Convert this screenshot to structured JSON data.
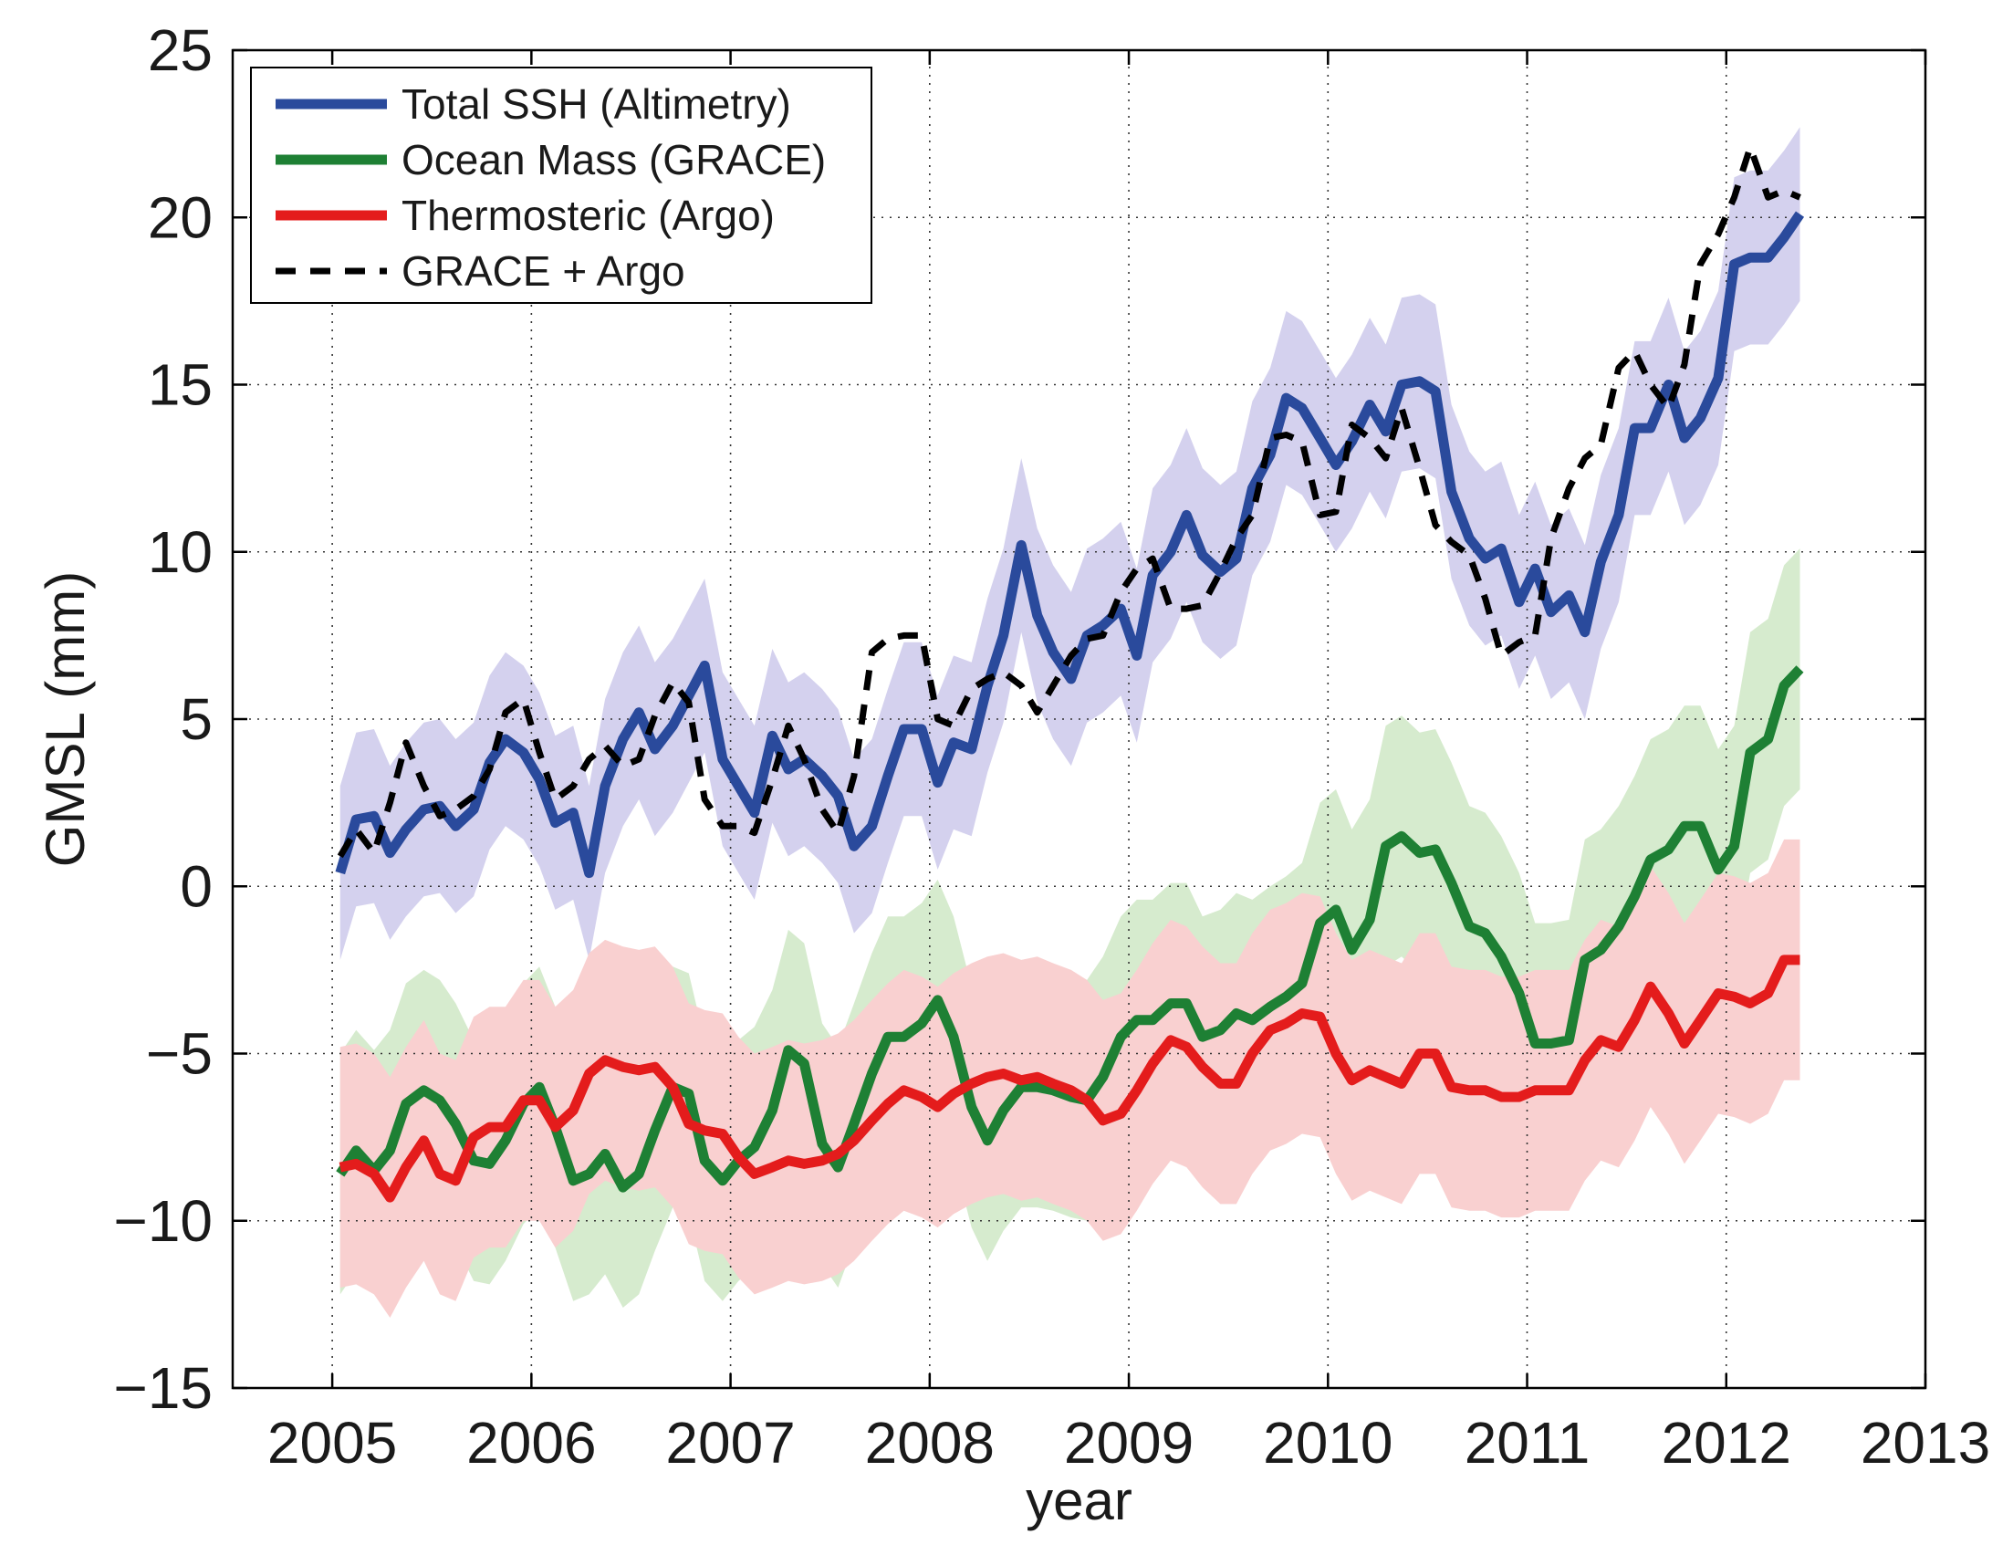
{
  "chart_data": {
    "type": "line",
    "title": "",
    "xlabel": "year",
    "ylabel": "GMSL (mm)",
    "xlim": [
      2004.5,
      2013
    ],
    "ylim": [
      -15,
      25
    ],
    "x_ticks": [
      2005,
      2006,
      2007,
      2008,
      2009,
      2010,
      2011,
      2012,
      2013
    ],
    "y_ticks": [
      -15,
      -10,
      -5,
      0,
      5,
      10,
      15,
      20,
      25
    ],
    "y_tick_labels": [
      "−15",
      "−10",
      "−5",
      "0",
      "5",
      "10",
      "15",
      "20",
      "25"
    ],
    "grid": true,
    "legend_position": "top-left",
    "series": [
      {
        "name": "Total SSH (Altimetry)",
        "color": "#2a4a9c",
        "band_color": "#d4d1ee",
        "band_width": 2.6,
        "style": "solid",
        "x": [
          2005.04,
          2005.12,
          2005.21,
          2005.29,
          2005.37,
          2005.46,
          2005.54,
          2005.62,
          2005.71,
          2005.79,
          2005.87,
          2005.96,
          2006.04,
          2006.12,
          2006.21,
          2006.29,
          2006.37,
          2006.46,
          2006.54,
          2006.62,
          2006.71,
          2006.79,
          2006.87,
          2006.96,
          2007.04,
          2007.12,
          2007.21,
          2007.29,
          2007.37,
          2007.46,
          2007.54,
          2007.62,
          2007.71,
          2007.79,
          2007.87,
          2007.96,
          2008.04,
          2008.12,
          2008.21,
          2008.29,
          2008.37,
          2008.46,
          2008.54,
          2008.62,
          2008.71,
          2008.79,
          2008.87,
          2008.96,
          2009.04,
          2009.12,
          2009.21,
          2009.29,
          2009.37,
          2009.46,
          2009.54,
          2009.62,
          2009.71,
          2009.79,
          2009.87,
          2009.96,
          2010.04,
          2010.12,
          2010.21,
          2010.29,
          2010.37,
          2010.46,
          2010.54,
          2010.62,
          2010.71,
          2010.79,
          2010.87,
          2010.96,
          2011.04,
          2011.12,
          2011.21,
          2011.29,
          2011.37,
          2011.46,
          2011.54,
          2011.62,
          2011.71,
          2011.79,
          2011.87,
          2011.96,
          2012.04,
          2012.12,
          2012.21,
          2012.29,
          2012.37
        ],
        "y": [
          0.4,
          2.0,
          2.1,
          1.0,
          1.7,
          2.3,
          2.4,
          1.8,
          2.3,
          3.7,
          4.4,
          4.0,
          3.2,
          1.9,
          2.2,
          0.4,
          3.0,
          4.4,
          5.2,
          4.1,
          4.8,
          5.7,
          6.6,
          3.8,
          3.0,
          2.2,
          4.5,
          3.5,
          3.8,
          3.3,
          2.7,
          1.2,
          1.8,
          3.3,
          4.7,
          4.7,
          3.1,
          4.3,
          4.1,
          6.0,
          7.5,
          10.2,
          8.1,
          7.0,
          6.2,
          7.5,
          7.8,
          8.3,
          6.9,
          9.3,
          10.0,
          11.1,
          9.9,
          9.4,
          9.8,
          11.9,
          12.9,
          14.6,
          14.3,
          13.4,
          12.6,
          13.3,
          14.4,
          13.6,
          15.0,
          15.1,
          14.8,
          11.8,
          10.4,
          9.8,
          10.1,
          8.5,
          9.5,
          8.2,
          8.7,
          7.6,
          9.7,
          11.1,
          13.7,
          13.7,
          15.0,
          13.4,
          14.0,
          15.2,
          18.6,
          18.8,
          18.8,
          19.4,
          20.1
        ]
      },
      {
        "name": "Ocean Mass (GRACE)",
        "color": "#1e8034",
        "band_color": "#d6ebce",
        "band_width": 3.6,
        "style": "solid",
        "x": [
          2005.04,
          2005.12,
          2005.21,
          2005.29,
          2005.37,
          2005.46,
          2005.54,
          2005.62,
          2005.71,
          2005.79,
          2005.87,
          2005.96,
          2006.04,
          2006.12,
          2006.21,
          2006.29,
          2006.37,
          2006.46,
          2006.54,
          2006.62,
          2006.71,
          2006.79,
          2006.87,
          2006.96,
          2007.04,
          2007.12,
          2007.21,
          2007.29,
          2007.37,
          2007.46,
          2007.54,
          2007.62,
          2007.71,
          2007.79,
          2007.87,
          2007.96,
          2008.04,
          2008.12,
          2008.21,
          2008.29,
          2008.37,
          2008.46,
          2008.54,
          2008.62,
          2008.71,
          2008.79,
          2008.87,
          2008.96,
          2009.04,
          2009.12,
          2009.21,
          2009.29,
          2009.37,
          2009.46,
          2009.54,
          2009.62,
          2009.71,
          2009.79,
          2009.87,
          2009.96,
          2010.04,
          2010.12,
          2010.21,
          2010.29,
          2010.37,
          2010.46,
          2010.54,
          2010.62,
          2010.71,
          2010.79,
          2010.87,
          2010.96,
          2011.04,
          2011.12,
          2011.21,
          2011.29,
          2011.37,
          2011.46,
          2011.54,
          2011.62,
          2011.71,
          2011.79,
          2011.87,
          2011.96,
          2012.04,
          2012.12,
          2012.21,
          2012.29,
          2012.37
        ],
        "y": [
          -8.6,
          -7.9,
          -8.5,
          -7.9,
          -6.5,
          -6.1,
          -6.4,
          -7.1,
          -8.2,
          -8.3,
          -7.6,
          -6.5,
          -6.0,
          -7.2,
          -8.8,
          -8.6,
          -8.0,
          -9.0,
          -8.6,
          -7.3,
          -6.0,
          -6.2,
          -8.2,
          -8.8,
          -8.2,
          -7.8,
          -6.7,
          -4.9,
          -5.3,
          -7.7,
          -8.4,
          -7.1,
          -5.6,
          -4.5,
          -4.5,
          -4.1,
          -3.4,
          -4.5,
          -6.6,
          -7.6,
          -6.7,
          -6.0,
          -6.0,
          -6.1,
          -6.3,
          -6.4,
          -5.7,
          -4.5,
          -4.0,
          -4.0,
          -3.5,
          -3.5,
          -4.5,
          -4.3,
          -3.8,
          -4.0,
          -3.6,
          -3.3,
          -2.9,
          -1.1,
          -0.7,
          -1.9,
          -1.0,
          1.2,
          1.5,
          1.0,
          1.1,
          0.1,
          -1.2,
          -1.4,
          -2.1,
          -3.2,
          -4.7,
          -4.7,
          -4.6,
          -2.2,
          -1.9,
          -1.2,
          -0.3,
          0.8,
          1.1,
          1.8,
          1.8,
          0.5,
          1.2,
          4.0,
          4.4,
          6.0,
          6.5
        ]
      },
      {
        "name": "Thermosteric (Argo)",
        "color": "#e41c1c",
        "band_color": "#f9d0d0",
        "band_width": 3.6,
        "style": "solid",
        "x": [
          2005.04,
          2005.12,
          2005.21,
          2005.29,
          2005.37,
          2005.46,
          2005.54,
          2005.62,
          2005.71,
          2005.79,
          2005.87,
          2005.96,
          2006.04,
          2006.12,
          2006.21,
          2006.29,
          2006.37,
          2006.46,
          2006.54,
          2006.62,
          2006.71,
          2006.79,
          2006.87,
          2006.96,
          2007.04,
          2007.12,
          2007.21,
          2007.29,
          2007.37,
          2007.46,
          2007.54,
          2007.62,
          2007.71,
          2007.79,
          2007.87,
          2007.96,
          2008.04,
          2008.12,
          2008.21,
          2008.29,
          2008.37,
          2008.46,
          2008.54,
          2008.62,
          2008.71,
          2008.79,
          2008.87,
          2008.96,
          2009.04,
          2009.12,
          2009.21,
          2009.29,
          2009.37,
          2009.46,
          2009.54,
          2009.62,
          2009.71,
          2009.79,
          2009.87,
          2009.96,
          2010.04,
          2010.12,
          2010.21,
          2010.29,
          2010.37,
          2010.46,
          2010.54,
          2010.62,
          2010.71,
          2010.79,
          2010.87,
          2010.96,
          2011.04,
          2011.12,
          2011.21,
          2011.29,
          2011.37,
          2011.46,
          2011.54,
          2011.62,
          2011.71,
          2011.79,
          2011.87,
          2011.96,
          2012.04,
          2012.12,
          2012.21,
          2012.29,
          2012.37
        ],
        "y": [
          -8.4,
          -8.3,
          -8.6,
          -9.3,
          -8.4,
          -7.6,
          -8.6,
          -8.8,
          -7.5,
          -7.2,
          -7.2,
          -6.4,
          -6.4,
          -7.2,
          -6.7,
          -5.6,
          -5.2,
          -5.4,
          -5.5,
          -5.4,
          -6.0,
          -7.1,
          -7.3,
          -7.4,
          -8.1,
          -8.6,
          -8.4,
          -8.2,
          -8.3,
          -8.2,
          -8.0,
          -7.6,
          -7.0,
          -6.5,
          -6.1,
          -6.3,
          -6.6,
          -6.2,
          -5.9,
          -5.7,
          -5.6,
          -5.8,
          -5.7,
          -5.9,
          -6.1,
          -6.4,
          -7.0,
          -6.8,
          -6.1,
          -5.3,
          -4.6,
          -4.8,
          -5.4,
          -5.9,
          -5.9,
          -5.0,
          -4.3,
          -4.1,
          -3.8,
          -3.9,
          -5.0,
          -5.8,
          -5.5,
          -5.7,
          -5.9,
          -5.0,
          -5.0,
          -6.0,
          -6.1,
          -6.1,
          -6.3,
          -6.3,
          -6.1,
          -6.1,
          -6.1,
          -5.2,
          -4.6,
          -4.8,
          -4.0,
          -3.0,
          -3.8,
          -4.7,
          -4.0,
          -3.2,
          -3.3,
          -3.5,
          -3.2,
          -2.2,
          -2.2
        ]
      },
      {
        "name": "GRACE + Argo",
        "color": "#000000",
        "style": "dashed",
        "x": [
          2005.04,
          2005.12,
          2005.21,
          2005.29,
          2005.37,
          2005.46,
          2005.54,
          2005.62,
          2005.71,
          2005.79,
          2005.87,
          2005.96,
          2006.04,
          2006.12,
          2006.21,
          2006.29,
          2006.37,
          2006.46,
          2006.54,
          2006.62,
          2006.71,
          2006.79,
          2006.87,
          2006.96,
          2007.04,
          2007.12,
          2007.21,
          2007.29,
          2007.37,
          2007.46,
          2007.54,
          2007.62,
          2007.71,
          2007.79,
          2007.87,
          2007.96,
          2008.04,
          2008.12,
          2008.21,
          2008.29,
          2008.37,
          2008.46,
          2008.54,
          2008.62,
          2008.71,
          2008.79,
          2008.87,
          2008.96,
          2009.04,
          2009.12,
          2009.21,
          2009.29,
          2009.37,
          2009.46,
          2009.54,
          2009.62,
          2009.71,
          2009.79,
          2009.87,
          2009.96,
          2010.04,
          2010.12,
          2010.21,
          2010.29,
          2010.37,
          2010.46,
          2010.54,
          2010.62,
          2010.71,
          2010.79,
          2010.87,
          2010.96,
          2011.04,
          2011.12,
          2011.21,
          2011.29,
          2011.37,
          2011.46,
          2011.54,
          2011.62,
          2011.71,
          2011.79,
          2011.87,
          2011.96,
          2012.04,
          2012.12,
          2012.21,
          2012.29,
          2012.37
        ],
        "y": [
          0.9,
          1.7,
          1.0,
          2.5,
          4.3,
          3.0,
          2.1,
          2.3,
          2.7,
          3.5,
          5.2,
          5.6,
          4.0,
          2.6,
          3.0,
          3.8,
          4.2,
          3.6,
          3.8,
          5.1,
          6.1,
          5.5,
          2.6,
          1.8,
          1.8,
          1.6,
          3.2,
          4.8,
          3.8,
          2.3,
          1.6,
          3.3,
          7.0,
          7.4,
          7.5,
          7.5,
          5.0,
          4.8,
          5.9,
          6.2,
          6.4,
          6.0,
          5.2,
          6.0,
          6.9,
          7.4,
          7.5,
          8.8,
          9.5,
          9.8,
          8.3,
          8.3,
          8.4,
          9.4,
          10.4,
          11.1,
          13.4,
          13.5,
          13.3,
          11.1,
          11.2,
          13.8,
          13.4,
          12.8,
          14.3,
          12.5,
          10.8,
          10.3,
          9.9,
          8.6,
          6.9,
          7.3,
          7.5,
          10.4,
          11.9,
          12.8,
          13.2,
          15.5,
          16.0,
          15.0,
          14.3,
          15.6,
          18.6,
          19.5,
          20.6,
          22.1,
          20.6,
          20.8,
          20.6
        ]
      }
    ]
  }
}
